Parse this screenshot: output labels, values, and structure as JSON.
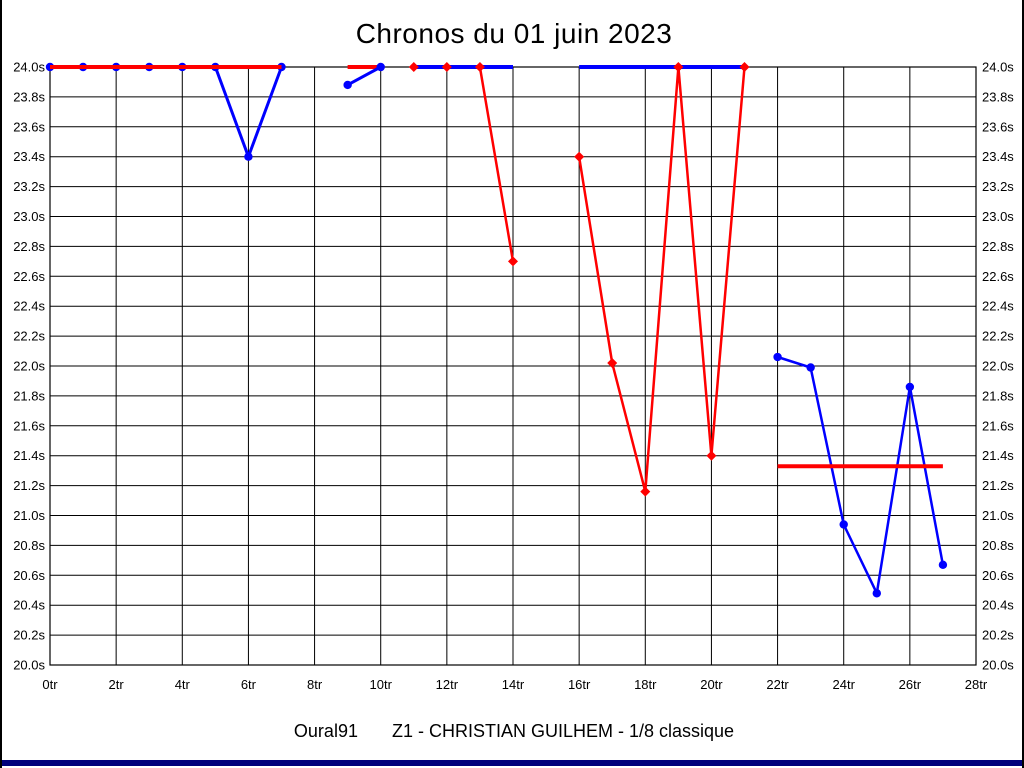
{
  "title": "Chronos du 01 juin 2023",
  "footer": {
    "club": "Oural91",
    "session": "Z1 - CHRISTIAN GUILHEM - 1/8 classique"
  },
  "frame": {
    "border_color": "#000000",
    "bottom_bar_color": "#00007b"
  },
  "chart_data": {
    "type": "line",
    "title": "Chronos du 01 juin 2023",
    "xlabel": "",
    "ylabel": "",
    "grid": true,
    "grid_color": "#000000",
    "x_axis": {
      "min": 0,
      "max": 28,
      "tick_step": 2,
      "unit": "tr",
      "tick_labels": [
        "0tr",
        "2tr",
        "4tr",
        "6tr",
        "8tr",
        "10tr",
        "12tr",
        "14tr",
        "16tr",
        "18tr",
        "20tr",
        "22tr",
        "24tr",
        "26tr",
        "28tr"
      ]
    },
    "y_axis": {
      "min": 20.0,
      "max": 24.0,
      "tick_step": 0.2,
      "unit": "s",
      "sides": [
        "left",
        "right"
      ],
      "tick_labels": [
        "20.0s",
        "20.2s",
        "20.4s",
        "20.6s",
        "20.8s",
        "21.0s",
        "21.2s",
        "21.4s",
        "21.6s",
        "21.8s",
        "22.0s",
        "22.2s",
        "22.4s",
        "22.6s",
        "22.8s",
        "23.0s",
        "23.2s",
        "23.4s",
        "23.6s",
        "23.8s",
        "24.0s"
      ]
    },
    "series": [
      {
        "name": "red",
        "color": "#ff0000",
        "marker": "diamond",
        "segments": [
          {
            "points": [
              [
                0,
                24.0
              ],
              [
                1,
                24.0
              ],
              [
                2,
                24.0
              ],
              [
                3,
                24.0
              ],
              [
                4,
                24.0
              ],
              [
                5,
                24.0
              ],
              [
                6,
                24.0
              ],
              [
                7,
                24.0
              ]
            ],
            "markers": false,
            "width": 4
          },
          {
            "points": [
              [
                9,
                24.0
              ],
              [
                10,
                24.0
              ]
            ],
            "markers": false,
            "width": 4
          },
          {
            "points": [
              [
                11,
                24.0
              ],
              [
                12,
                24.0
              ],
              [
                13,
                24.0
              ],
              [
                14,
                22.7
              ]
            ],
            "markers": true,
            "width": 2.5
          },
          {
            "points": [
              [
                16,
                23.4
              ],
              [
                17,
                22.02
              ],
              [
                18,
                21.16
              ],
              [
                19,
                24.0
              ],
              [
                20,
                21.4
              ],
              [
                21,
                24.0
              ]
            ],
            "markers": true,
            "width": 2.5
          },
          {
            "points": [
              [
                22,
                21.33
              ],
              [
                23,
                21.33
              ],
              [
                24,
                21.33
              ],
              [
                25,
                21.33
              ],
              [
                26,
                21.33
              ],
              [
                27,
                21.33
              ]
            ],
            "markers": false,
            "width": 4
          }
        ]
      },
      {
        "name": "blue",
        "color": "#0000ff",
        "marker": "circle",
        "segments": [
          {
            "points": [
              [
                0,
                24.0
              ],
              [
                1,
                24.0
              ],
              [
                2,
                24.0
              ],
              [
                3,
                24.0
              ],
              [
                4,
                24.0
              ],
              [
                5,
                24.0
              ],
              [
                6,
                23.4
              ],
              [
                7,
                24.0
              ]
            ],
            "markers": true,
            "width": 3
          },
          {
            "points": [
              [
                9,
                23.88
              ],
              [
                10,
                24.0
              ]
            ],
            "markers": true,
            "width": 3
          },
          {
            "points": [
              [
                11,
                24.0
              ],
              [
                12,
                24.0
              ],
              [
                13,
                24.0
              ],
              [
                14,
                24.0
              ]
            ],
            "markers": false,
            "width": 4
          },
          {
            "points": [
              [
                16,
                24.0
              ],
              [
                17,
                24.0
              ],
              [
                18,
                24.0
              ],
              [
                19,
                24.0
              ],
              [
                20,
                24.0
              ],
              [
                21,
                24.0
              ]
            ],
            "markers": false,
            "width": 4
          },
          {
            "points": [
              [
                22,
                22.06
              ],
              [
                23,
                21.99
              ],
              [
                24,
                20.94
              ],
              [
                25,
                20.48
              ],
              [
                26,
                21.86
              ],
              [
                27,
                20.67
              ]
            ],
            "markers": true,
            "width": 2.5
          }
        ]
      }
    ]
  }
}
